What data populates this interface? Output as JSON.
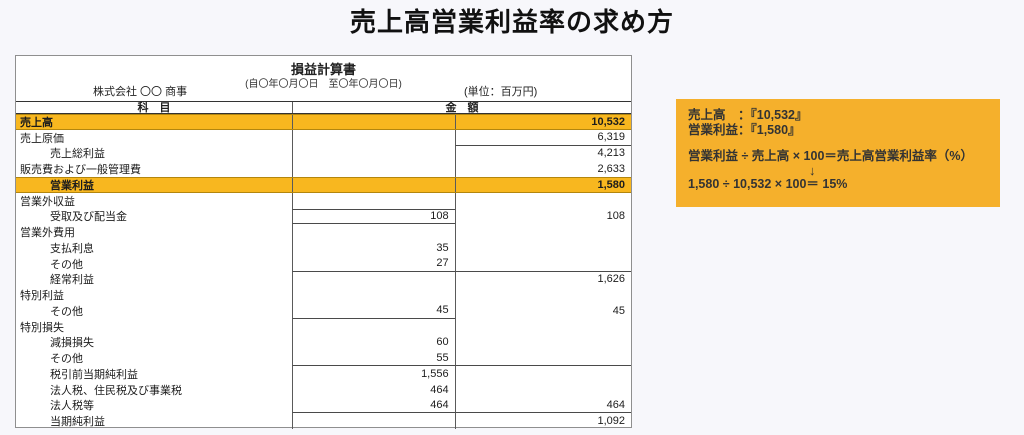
{
  "page_title": "売上高営業利益率の求め方",
  "colors": {
    "page_bg": "#f7f7fb",
    "highlight_row": "#f8b71f",
    "panel_bg": "#f5b02c"
  },
  "statement": {
    "title": "損益計算書",
    "period": "(自〇年〇月〇日　至〇年〇月〇日)",
    "company": "株式会社 〇〇 商事",
    "unit": "(単位：百万円)",
    "col_subject": "科　目",
    "col_amount": "金　額"
  },
  "table": {
    "rows": [
      {
        "label": "売上高",
        "indent": 0,
        "mid": "",
        "right": "10,532",
        "highlight": true,
        "lines": []
      },
      {
        "label": "売上原価",
        "indent": 0,
        "mid": "",
        "right": "6,319",
        "highlight": false,
        "lines": [
          "rb"
        ]
      },
      {
        "label": "売上総利益",
        "indent": 1,
        "mid": "",
        "right": "4,213",
        "highlight": false,
        "lines": []
      },
      {
        "label": "販売費および一般管理費",
        "indent": 0,
        "mid": "",
        "right": "2,633",
        "highlight": false,
        "lines": []
      },
      {
        "label": "営業利益",
        "indent": 1,
        "mid": "",
        "right": "1,580",
        "highlight": true,
        "lines": []
      },
      {
        "label": "営業外収益",
        "indent": 0,
        "mid": "",
        "right": "",
        "highlight": false,
        "lines": []
      },
      {
        "label": "受取及び配当金",
        "indent": 1,
        "mid": "108",
        "right": "108",
        "highlight": false,
        "lines": [
          "mt",
          "mb"
        ]
      },
      {
        "label": "営業外費用",
        "indent": 0,
        "mid": "",
        "right": "",
        "highlight": false,
        "lines": []
      },
      {
        "label": "支払利息",
        "indent": 1,
        "mid": "35",
        "right": "",
        "highlight": false,
        "lines": []
      },
      {
        "label": "その他",
        "indent": 1,
        "mid": "27",
        "right": "",
        "highlight": false,
        "lines": [
          "mb",
          "rb"
        ]
      },
      {
        "label": "経常利益",
        "indent": 1,
        "mid": "",
        "right": "1,626",
        "highlight": false,
        "lines": []
      },
      {
        "label": "特別利益",
        "indent": 0,
        "mid": "",
        "right": "",
        "highlight": false,
        "lines": []
      },
      {
        "label": "その他",
        "indent": 1,
        "mid": "45",
        "right": "45",
        "highlight": false,
        "lines": [
          "mb"
        ]
      },
      {
        "label": "特別損失",
        "indent": 0,
        "mid": "",
        "right": "",
        "highlight": false,
        "lines": []
      },
      {
        "label": "減損損失",
        "indent": 1,
        "mid": "60",
        "right": "",
        "highlight": false,
        "lines": []
      },
      {
        "label": "その他",
        "indent": 1,
        "mid": "55",
        "right": "",
        "highlight": false,
        "lines": [
          "mb",
          "rb"
        ]
      },
      {
        "label": "税引前当期純利益",
        "indent": 1,
        "mid": "1,556",
        "right": "",
        "highlight": false,
        "lines": []
      },
      {
        "label": "法人税、住民税及び事業税",
        "indent": 1,
        "mid": "464",
        "right": "",
        "highlight": false,
        "lines": []
      },
      {
        "label": "法人税等",
        "indent": 1,
        "mid": "464",
        "right": "464",
        "highlight": false,
        "lines": [
          "mb",
          "rb"
        ]
      },
      {
        "label": "当期純利益",
        "indent": 1,
        "mid": "",
        "right": "1,092",
        "highlight": false,
        "lines": []
      }
    ]
  },
  "formula_panel": {
    "sales_line": "売上高　：『10,532』",
    "operating_line": "営業利益：『1,580』",
    "formula_line": "営業利益 ÷ 売上高 × 100＝売上高営業利益率（%）",
    "arrow": "↓",
    "result_line": "1,580 ÷ 10,532 × 100＝ 15%"
  }
}
